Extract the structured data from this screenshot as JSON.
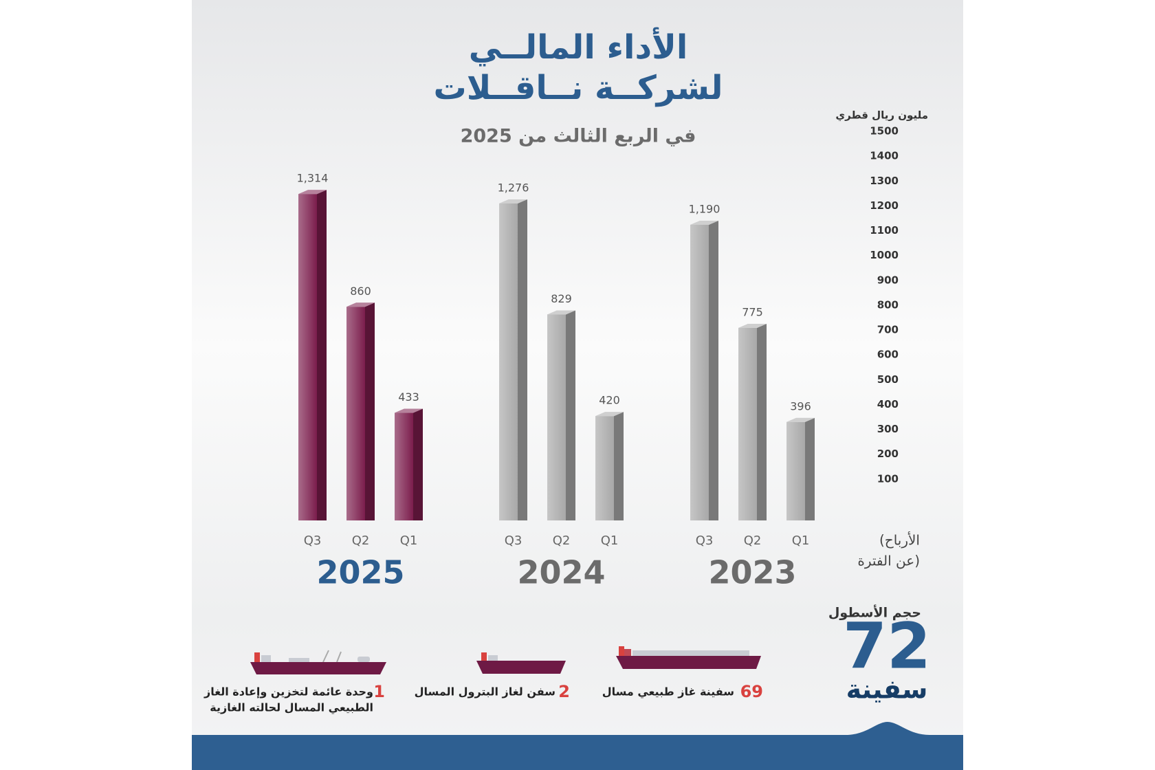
{
  "chart_data": {
    "type": "bar3d",
    "title_lines": [
      "الأداء المالــي",
      "لشركــة نــاقــلات"
    ],
    "subtitle": "في الربع الثالث من 2025",
    "y_label": "مليون ريال قطري",
    "measure_label_lines": [
      "(الأرباح",
      "عن الفترة)"
    ],
    "categories": [
      "Q3",
      "Q2",
      "Q1"
    ],
    "series": [
      {
        "name": "2025",
        "color": "#7b1d4c",
        "label_color": "#2c5d8f",
        "values": [
          1314,
          860,
          433
        ],
        "value_labels": [
          "1,314",
          "860",
          "433"
        ]
      },
      {
        "name": "2024",
        "color": "#a8a8a8",
        "label_color": "#6b6b6b",
        "values": [
          1276,
          829,
          420
        ],
        "value_labels": [
          "1,276",
          "829",
          "420"
        ]
      },
      {
        "name": "2023",
        "color": "#a8a8a8",
        "label_color": "#6b6b6b",
        "values": [
          1190,
          775,
          396
        ],
        "value_labels": [
          "1,190",
          "775",
          "396"
        ]
      }
    ],
    "ylim": [
      0,
      1500
    ],
    "yticks": [
      100,
      200,
      300,
      400,
      500,
      600,
      700,
      800,
      900,
      1000,
      1100,
      1200,
      1300,
      1400,
      1500
    ]
  },
  "fleet": {
    "title": "حجم الأسطول",
    "total": "72",
    "unit": "سفينة",
    "items": [
      {
        "count": "69",
        "lines": [
          "سفينة غاز طبيعي مسال"
        ]
      },
      {
        "count": "2",
        "lines": [
          "سفن لغاز البترول المسال"
        ]
      },
      {
        "count": "1",
        "lines": [
          "وحدة عائمة لتخزين وإعادة الغاز",
          "الطبيعي المسال لحالته الغازية"
        ]
      }
    ]
  }
}
